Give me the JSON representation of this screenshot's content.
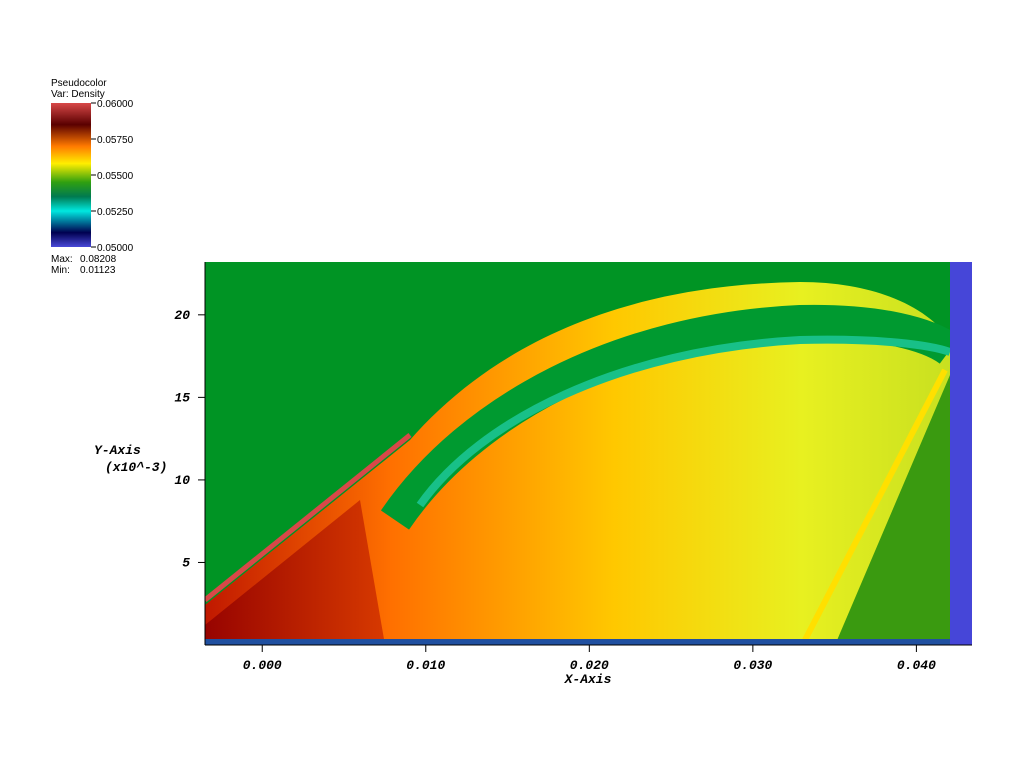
{
  "legend": {
    "title": "Pseudocolor",
    "variable": "Var: Density",
    "range": [
      0.05,
      0.06
    ],
    "ticks": [
      {
        "value": 0.06,
        "label": "0.06000"
      },
      {
        "value": 0.0575,
        "label": "0.05750"
      },
      {
        "value": 0.055,
        "label": "0.05500"
      },
      {
        "value": 0.0525,
        "label": "0.05250"
      },
      {
        "value": 0.05,
        "label": "0.05000"
      }
    ],
    "max_label": "Max:",
    "max": 0.08208,
    "min_label": "Min:",
    "min": 0.01123
  },
  "chart_data": {
    "type": "pseudocolor",
    "x_label": "X-Axis",
    "y_label": "Y-Axis",
    "y_unit": "(x10^-3)",
    "xlim": [
      -0.0035,
      0.0434
    ],
    "ylim": [
      0,
      23.2
    ],
    "xticks": [
      {
        "value": 0,
        "label": "0.000"
      },
      {
        "value": 0.01,
        "label": "0.010"
      },
      {
        "value": 0.02,
        "label": "0.020"
      },
      {
        "value": 0.03,
        "label": "0.030"
      },
      {
        "value": 0.04,
        "label": "0.040"
      }
    ],
    "yticks": [
      5,
      10,
      15,
      20
    ]
  }
}
